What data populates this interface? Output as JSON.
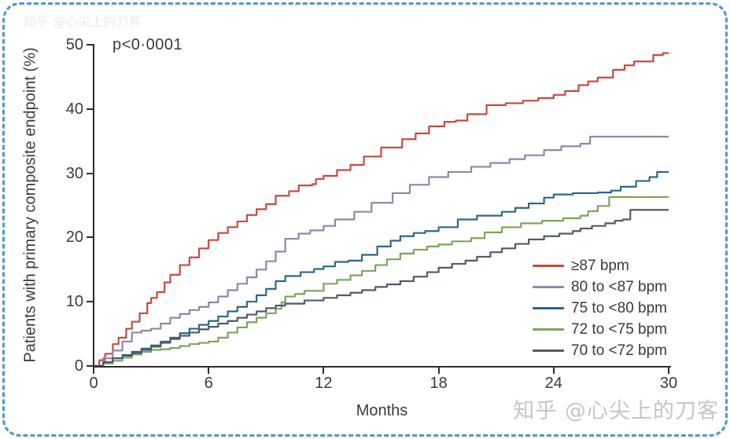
{
  "watermark": {
    "text": "知乎 @心尖上的刀客"
  },
  "style": {
    "border_color": "#4f98c9",
    "axis_color": "#2f2d2c",
    "text_color": "#3b3b3b",
    "background": "#ffffff"
  },
  "chart_data": {
    "type": "line",
    "subtype": "kaplan-meier-cumulative-incidence-steps",
    "title": "",
    "xlabel": "Months",
    "ylabel": "Patients with primary composite endpoint (%)",
    "xlim": [
      0,
      30
    ],
    "ylim": [
      0,
      50
    ],
    "xticks": [
      0,
      6,
      12,
      18,
      24,
      30
    ],
    "yticks": [
      0,
      10,
      20,
      30,
      40,
      50
    ],
    "grid": false,
    "legend_position": "inside-right-lower",
    "annotations": {
      "p_value": "p<0·0001"
    },
    "series": [
      {
        "name": "≥87 bpm",
        "color": "#c9493f",
        "points": [
          [
            0,
            0
          ],
          [
            0.3,
            0.9
          ],
          [
            0.6,
            1.9
          ],
          [
            1,
            3.4
          ],
          [
            1.3,
            4.4
          ],
          [
            1.7,
            5.8
          ],
          [
            2,
            6.9
          ],
          [
            2.4,
            8.2
          ],
          [
            2.8,
            9.8
          ],
          [
            3,
            10.6
          ],
          [
            3.3,
            11.5
          ],
          [
            3.7,
            13
          ],
          [
            4,
            14.2
          ],
          [
            4.5,
            15.7
          ],
          [
            5,
            16.9
          ],
          [
            5.5,
            18.3
          ],
          [
            6,
            19.6
          ],
          [
            6.5,
            20.7
          ],
          [
            7,
            21.6
          ],
          [
            7.5,
            22.5
          ],
          [
            8,
            23.5
          ],
          [
            8.5,
            24.4
          ],
          [
            9,
            25.2
          ],
          [
            9.5,
            26.5
          ],
          [
            10.2,
            27.2
          ],
          [
            10.7,
            28.1
          ],
          [
            11.4,
            28.3
          ],
          [
            11.6,
            29.1
          ],
          [
            12,
            29.6
          ],
          [
            12.7,
            30.5
          ],
          [
            13.4,
            31.3
          ],
          [
            14.1,
            32.6
          ],
          [
            15,
            34
          ],
          [
            16.1,
            35.3
          ],
          [
            16.8,
            36.2
          ],
          [
            17.5,
            37.3
          ],
          [
            18.3,
            38
          ],
          [
            18.9,
            38.2
          ],
          [
            19.5,
            39.2
          ],
          [
            20.5,
            40.6
          ],
          [
            21.5,
            40.9
          ],
          [
            22.4,
            41.3
          ],
          [
            23.2,
            41.7
          ],
          [
            24,
            42.2
          ],
          [
            24.6,
            42.8
          ],
          [
            25.3,
            43.7
          ],
          [
            25.8,
            44.3
          ],
          [
            26.3,
            44.9
          ],
          [
            27.1,
            46.1
          ],
          [
            27.7,
            46.8
          ],
          [
            28.2,
            47.4
          ],
          [
            29.2,
            48.4
          ],
          [
            29.7,
            48.7
          ],
          [
            30,
            48.7
          ]
        ]
      },
      {
        "name": "80 to <87 bpm",
        "color": "#8e87a7",
        "points": [
          [
            0,
            0
          ],
          [
            0.5,
            1.2
          ],
          [
            1,
            2.4
          ],
          [
            1.5,
            3.8
          ],
          [
            2,
            5.2
          ],
          [
            2.5,
            5.5
          ],
          [
            3,
            5.8
          ],
          [
            3.5,
            6.6
          ],
          [
            4,
            7.5
          ],
          [
            4.5,
            8.1
          ],
          [
            5,
            8.7
          ],
          [
            5.5,
            9.2
          ],
          [
            6,
            9.9
          ],
          [
            6.5,
            10.8
          ],
          [
            7,
            11.8
          ],
          [
            7.5,
            12.8
          ],
          [
            8,
            13.8
          ],
          [
            8.5,
            15
          ],
          [
            9,
            16.3
          ],
          [
            9.5,
            17.8
          ],
          [
            10,
            19.8
          ],
          [
            10.7,
            20.6
          ],
          [
            11.3,
            21.1
          ],
          [
            12,
            21.8
          ],
          [
            12.6,
            22.8
          ],
          [
            13.6,
            24
          ],
          [
            14.5,
            25.4
          ],
          [
            15.6,
            26.9
          ],
          [
            16.5,
            28.2
          ],
          [
            17.5,
            29.4
          ],
          [
            18.5,
            30.2
          ],
          [
            19.7,
            31
          ],
          [
            20.7,
            31.6
          ],
          [
            21.7,
            32.2
          ],
          [
            22.5,
            32.8
          ],
          [
            23.5,
            33.6
          ],
          [
            24.4,
            34.2
          ],
          [
            25.4,
            34.6
          ],
          [
            25.9,
            35.7
          ],
          [
            30,
            35.7
          ]
        ]
      },
      {
        "name": "75 to <80 bpm",
        "color": "#2a688a",
        "points": [
          [
            0,
            0
          ],
          [
            0.5,
            0.6
          ],
          [
            1,
            1.2
          ],
          [
            1.5,
            1.7
          ],
          [
            2,
            2.2
          ],
          [
            2.5,
            2.7
          ],
          [
            3,
            3.2
          ],
          [
            3.5,
            3.8
          ],
          [
            4,
            4.4
          ],
          [
            4.5,
            5.1
          ],
          [
            5,
            5.8
          ],
          [
            5.5,
            6.4
          ],
          [
            6,
            7
          ],
          [
            6.5,
            7.7
          ],
          [
            7,
            8.5
          ],
          [
            7.5,
            9.2
          ],
          [
            8,
            10
          ],
          [
            8.5,
            11
          ],
          [
            9,
            12
          ],
          [
            9.5,
            13.2
          ],
          [
            10,
            14
          ],
          [
            10.8,
            14.6
          ],
          [
            11.5,
            15.1
          ],
          [
            12,
            15.5
          ],
          [
            12.6,
            16.2
          ],
          [
            13.3,
            16.4
          ],
          [
            14,
            17.3
          ],
          [
            14.8,
            18.6
          ],
          [
            15.5,
            19.5
          ],
          [
            16,
            20.2
          ],
          [
            16.7,
            20.7
          ],
          [
            17.3,
            21
          ],
          [
            18,
            21.6
          ],
          [
            19,
            22.8
          ],
          [
            20,
            23.4
          ],
          [
            21.3,
            24
          ],
          [
            22,
            24.6
          ],
          [
            22.7,
            25.3
          ],
          [
            23.5,
            26.2
          ],
          [
            24,
            26.7
          ],
          [
            25,
            26.9
          ],
          [
            26.3,
            27
          ],
          [
            27,
            27.3
          ],
          [
            27.5,
            27.9
          ],
          [
            28.3,
            28.8
          ],
          [
            29,
            29.4
          ],
          [
            29.4,
            30.2
          ],
          [
            30,
            30.2
          ]
        ]
      },
      {
        "name": "72 to <75 bpm",
        "color": "#7da55a",
        "points": [
          [
            0,
            0
          ],
          [
            0.5,
            0.4
          ],
          [
            1,
            0.8
          ],
          [
            1.5,
            1.3
          ],
          [
            2,
            1.8
          ],
          [
            2.5,
            2.2
          ],
          [
            3,
            2.5
          ],
          [
            3.5,
            2.6
          ],
          [
            4,
            2.8
          ],
          [
            4.5,
            3.1
          ],
          [
            5,
            3.4
          ],
          [
            5.5,
            3.6
          ],
          [
            6,
            3.8
          ],
          [
            6.5,
            4.4
          ],
          [
            7,
            5.2
          ],
          [
            7.5,
            6
          ],
          [
            8,
            6.8
          ],
          [
            8.5,
            7.5
          ],
          [
            9,
            8.2
          ],
          [
            9.5,
            8.9
          ],
          [
            9.8,
            9.9
          ],
          [
            10,
            10.8
          ],
          [
            10.5,
            11.2
          ],
          [
            11,
            11.7
          ],
          [
            12,
            12.8
          ],
          [
            12.7,
            13.4
          ],
          [
            13.4,
            14.1
          ],
          [
            14,
            14.8
          ],
          [
            14.7,
            15.7
          ],
          [
            15.3,
            16.6
          ],
          [
            16,
            17.5
          ],
          [
            16.7,
            18.1
          ],
          [
            17.4,
            18.6
          ],
          [
            18,
            18.9
          ],
          [
            18.7,
            19.4
          ],
          [
            19.7,
            19.9
          ],
          [
            20.4,
            20.8
          ],
          [
            21.3,
            21.6
          ],
          [
            22.3,
            22.2
          ],
          [
            23.4,
            22.6
          ],
          [
            24.5,
            23
          ],
          [
            25.4,
            23.4
          ],
          [
            25.8,
            24.1
          ],
          [
            26.3,
            24.9
          ],
          [
            26.9,
            26.3
          ],
          [
            30,
            26.3
          ]
        ]
      },
      {
        "name": "70 to <72 bpm",
        "color": "#4e5c66",
        "points": [
          [
            0,
            0
          ],
          [
            0.5,
            0.6
          ],
          [
            1,
            1.2
          ],
          [
            1.5,
            1.6
          ],
          [
            2,
            2
          ],
          [
            2.5,
            2.5
          ],
          [
            3,
            3
          ],
          [
            3.5,
            3.6
          ],
          [
            4,
            4.2
          ],
          [
            4.5,
            4.7
          ],
          [
            5,
            5.2
          ],
          [
            5.5,
            5.7
          ],
          [
            6,
            6.1
          ],
          [
            6.5,
            6.6
          ],
          [
            7,
            7
          ],
          [
            7.5,
            7.5
          ],
          [
            8,
            8
          ],
          [
            8.5,
            8.5
          ],
          [
            9,
            9
          ],
          [
            9.5,
            9.4
          ],
          [
            10,
            9.7
          ],
          [
            11,
            10.2
          ],
          [
            12,
            10.6
          ],
          [
            12.7,
            11
          ],
          [
            13.4,
            11.4
          ],
          [
            14,
            11.8
          ],
          [
            14.7,
            12.3
          ],
          [
            15.3,
            12.7
          ],
          [
            16,
            13.2
          ],
          [
            16.7,
            13.9
          ],
          [
            17.4,
            14.6
          ],
          [
            18,
            15.3
          ],
          [
            18.7,
            15.9
          ],
          [
            19.4,
            16.4
          ],
          [
            20,
            17
          ],
          [
            20.7,
            17.7
          ],
          [
            21.3,
            18.3
          ],
          [
            22,
            19
          ],
          [
            22.7,
            19.7
          ],
          [
            23.5,
            20.2
          ],
          [
            24.3,
            20.6
          ],
          [
            25,
            21
          ],
          [
            25.4,
            21.4
          ],
          [
            26,
            21.8
          ],
          [
            26.7,
            22.2
          ],
          [
            27.2,
            22.6
          ],
          [
            27.6,
            22.8
          ],
          [
            28,
            24.3
          ],
          [
            30,
            24.3
          ]
        ]
      }
    ]
  }
}
